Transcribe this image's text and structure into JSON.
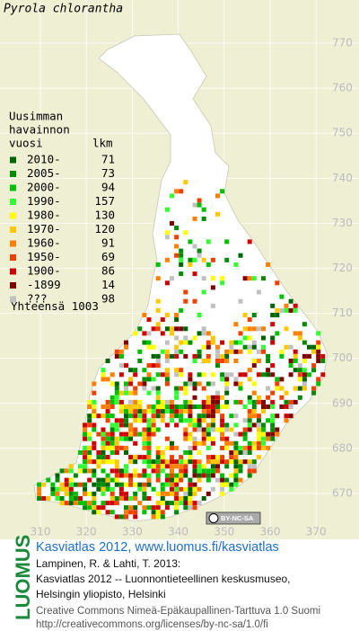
{
  "title": "Pyrola chlorantha",
  "legend": {
    "heading": [
      "Uusimman",
      "havainnon",
      "vuosi"
    ],
    "count_heading": "lkm",
    "rows": [
      {
        "label": "2010-",
        "count": 71,
        "color": "#006400"
      },
      {
        "label": "2005-",
        "count": 73,
        "color": "#008c00"
      },
      {
        "label": "2000-",
        "count": 94,
        "color": "#00c000"
      },
      {
        "label": "1990-",
        "count": 157,
        "color": "#30ff30"
      },
      {
        "label": "1980-",
        "count": 130,
        "color": "#ffff00"
      },
      {
        "label": "1970-",
        "count": 120,
        "color": "#ffc800"
      },
      {
        "label": "1960-",
        "count": 91,
        "color": "#ff8000"
      },
      {
        "label": "1950-",
        "count": 69,
        "color": "#f04000"
      },
      {
        "label": "1900-",
        "count": 86,
        "color": "#d00000"
      },
      {
        "label": "-1899",
        "count": 14,
        "color": "#800000"
      },
      {
        "label": "???",
        "count": 98,
        "color": "#c0c0c0"
      }
    ],
    "total_label": "Yhteensä",
    "total": 1003
  },
  "grid": {
    "y_labels": [
      770,
      760,
      750,
      740,
      730,
      720,
      710,
      700,
      690,
      680,
      670
    ],
    "x_labels": [
      310,
      320,
      330,
      340,
      350,
      360,
      370
    ]
  },
  "badge": "BY-NC-SA",
  "logo": "LUOMUS",
  "credits": {
    "atlas": "Kasviatlas 2012, www.luomus.fi/kasviatlas",
    "citation": [
      "Lampinen, R. & Lahti, T. 2013:",
      "Kasviatlas 2012 -- Luonnontieteellinen keskusmuseo,",
      "Helsingin yliopisto, Helsinki"
    ],
    "license": "Creative Commons Nimeä-Epäkaupallinen-Tarttuva 1.0 Suomi",
    "license_url": "http://creativecommons.org/licenses/by-nc-sa/1.0/fi"
  }
}
